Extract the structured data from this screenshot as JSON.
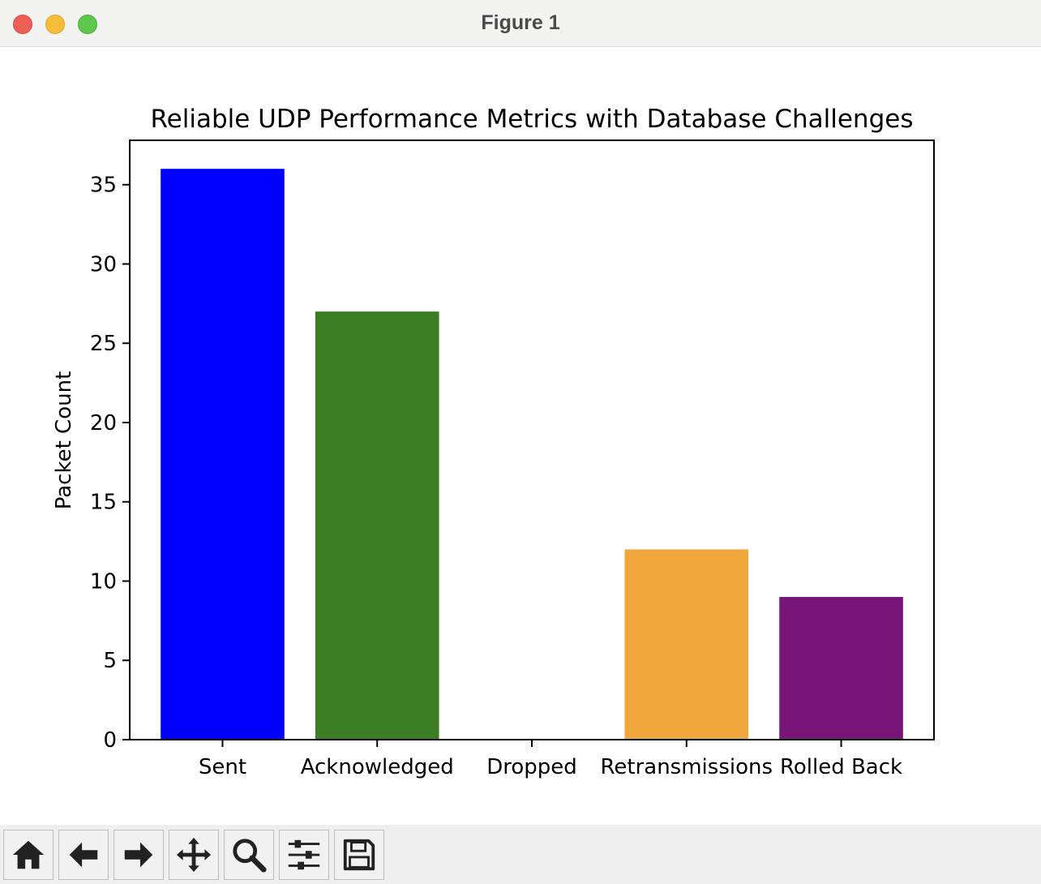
{
  "window": {
    "title": "Figure 1"
  },
  "toolbar": {
    "buttons": [
      {
        "name": "home",
        "icon": "home-icon"
      },
      {
        "name": "back",
        "icon": "arrow-left-icon"
      },
      {
        "name": "forward",
        "icon": "arrow-right-icon"
      },
      {
        "name": "pan",
        "icon": "move-icon"
      },
      {
        "name": "zoom",
        "icon": "magnifier-icon"
      },
      {
        "name": "configure-subplots",
        "icon": "sliders-icon"
      },
      {
        "name": "save",
        "icon": "floppy-disk-icon"
      }
    ]
  },
  "chart_data": {
    "type": "bar",
    "title": "Reliable UDP Performance Metrics with Database Challenges",
    "xlabel": "",
    "ylabel": "Packet Count",
    "categories": [
      "Sent",
      "Acknowledged",
      "Dropped",
      "Retransmissions",
      "Rolled Back"
    ],
    "values": [
      36,
      27,
      0,
      12,
      9
    ],
    "colors": [
      "#0000ff",
      "#3a7d22",
      "#808080",
      "#f0a83c",
      "#771578"
    ],
    "ylim": [
      0,
      37.8
    ],
    "yticks": [
      0,
      5,
      10,
      15,
      20,
      25,
      30,
      35
    ],
    "grid": false,
    "legend": "none"
  }
}
